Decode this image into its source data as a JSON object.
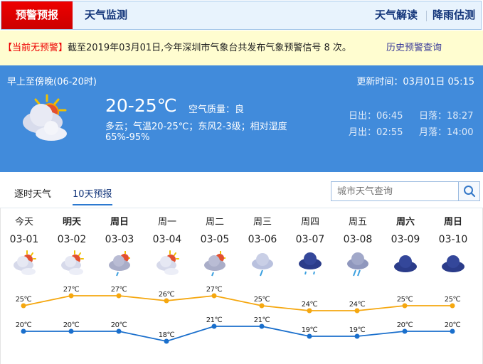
{
  "nav": {
    "active": "预警预报",
    "monitor": "天气监测",
    "interpret": "天气解读",
    "rain": "降雨估测"
  },
  "alert": {
    "status": "【当前无预警】",
    "message": "截至2019年03月01日,今年深圳市气象台共发布气象预警信号 8 次。",
    "history_link": "历史预警查询"
  },
  "current": {
    "period": "早上至傍晚(06-20时)",
    "update": "更新时间：03月01日 05:15",
    "temp": "20-25℃",
    "air": "空气质量：良",
    "desc": "多云；气温20-25℃；东风2-3级；相对湿度",
    "humidity": "65%-95%",
    "sunrise": "日出：06:45",
    "sunset": "日落：18:27",
    "moonrise": "月出：02:55",
    "moonset": "月落：14:00",
    "icon": "partly-cloudy-icon"
  },
  "tabs": {
    "hourly": "逐时天气",
    "tenday": "10天预报"
  },
  "search": {
    "placeholder": "城市天气查询",
    "icon": "search-icon"
  },
  "colors": {
    "high": "#f5a70f",
    "low": "#1a6fcc",
    "panel": "#418bdb",
    "alert_red": "#ee0000"
  },
  "forecast": [
    {
      "day": "今天",
      "date": "03-01",
      "icon": "partly-cloudy",
      "high": 25,
      "low": 20,
      "high_label": "25℃",
      "low_label": "20℃",
      "bold": false
    },
    {
      "day": "明天",
      "date": "03-02",
      "icon": "partly-cloudy",
      "high": 27,
      "low": 20,
      "high_label": "27℃",
      "low_label": "20℃",
      "bold": true
    },
    {
      "day": "周日",
      "date": "03-03",
      "icon": "cloudy-shower",
      "high": 27,
      "low": 20,
      "high_label": "27℃",
      "low_label": "20℃",
      "bold": true
    },
    {
      "day": "周一",
      "date": "03-04",
      "icon": "partly-cloudy",
      "high": 26,
      "low": 18,
      "high_label": "26℃",
      "low_label": "18℃",
      "bold": false
    },
    {
      "day": "周二",
      "date": "03-05",
      "icon": "cloudy-shower",
      "high": 27,
      "low": 21,
      "high_label": "27℃",
      "low_label": "21℃",
      "bold": false
    },
    {
      "day": "周三",
      "date": "03-06",
      "icon": "light-rain",
      "high": 25,
      "low": 21,
      "high_label": "25℃",
      "low_label": "21℃",
      "bold": false
    },
    {
      "day": "周四",
      "date": "03-07",
      "icon": "overcast-rain",
      "high": 24,
      "low": 19,
      "high_label": "24℃",
      "low_label": "19℃",
      "bold": false
    },
    {
      "day": "周五",
      "date": "03-08",
      "icon": "moderate-rain",
      "high": 24,
      "low": 19,
      "high_label": "24℃",
      "low_label": "19℃",
      "bold": false
    },
    {
      "day": "周六",
      "date": "03-09",
      "icon": "overcast",
      "high": 25,
      "low": 20,
      "high_label": "25℃",
      "low_label": "20℃",
      "bold": true
    },
    {
      "day": "周日",
      "date": "03-10",
      "icon": "overcast",
      "high": 25,
      "low": 20,
      "high_label": "25℃",
      "low_label": "20℃",
      "bold": true
    }
  ]
}
